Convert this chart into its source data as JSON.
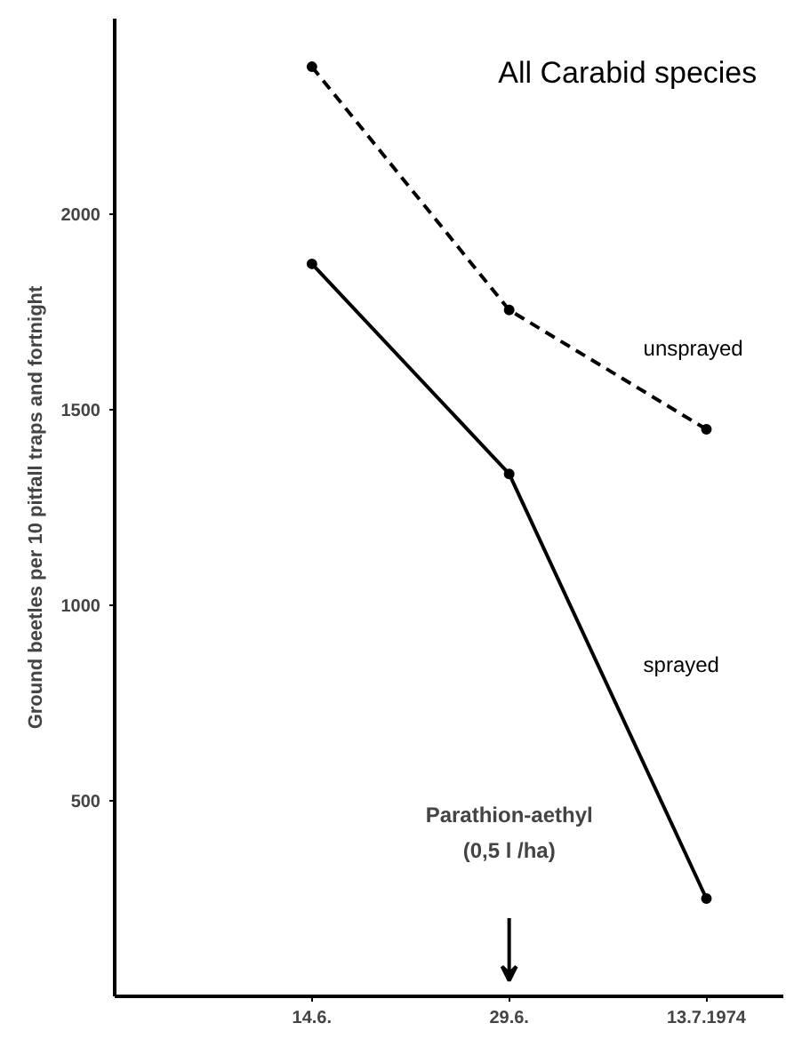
{
  "chart_data": {
    "type": "line",
    "title": "All Carabid species",
    "ylabel": "Ground beetles per 10 pitfall traps and fortnight",
    "categories": [
      "14.6.",
      "29.6.",
      "13.7.1974"
    ],
    "series": [
      {
        "name": "unsprayed",
        "color": "#000000",
        "line_style": "dashed",
        "values": [
          2377,
          1755,
          1450
        ]
      },
      {
        "name": "sprayed",
        "color": "#000000",
        "line_style": "solid",
        "values": [
          1873,
          1336,
          250
        ]
      }
    ],
    "ylim": [
      0,
      2500
    ],
    "yticks": [
      500,
      1000,
      1500,
      2000
    ],
    "grid": false,
    "legend": false,
    "marker": "circle",
    "annotations": [
      "Parathion-aethyl\n(0,5 l /ha)"
    ]
  }
}
